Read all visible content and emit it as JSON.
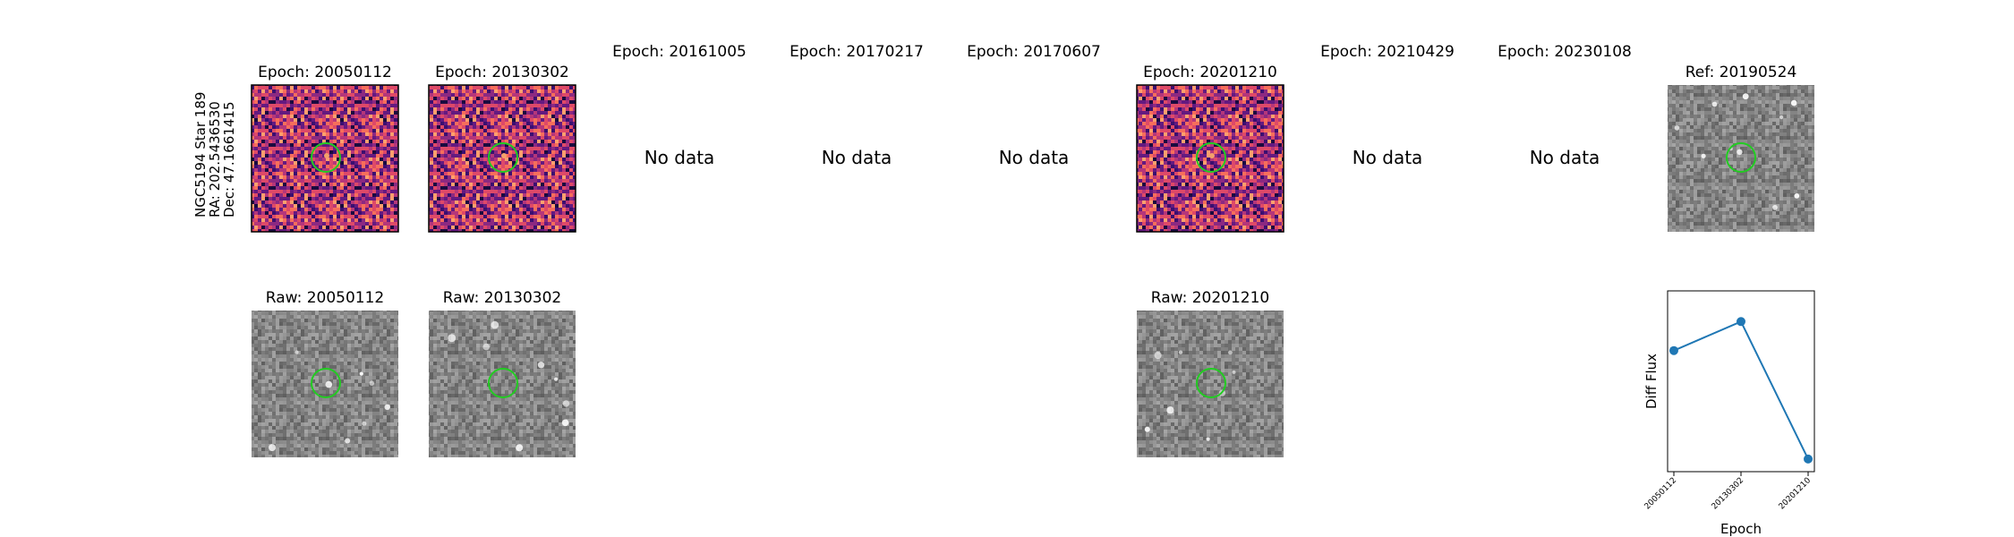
{
  "target_info": [
    "NGC5194 Star 189",
    "RA: 202.5436530",
    "Dec: 47.1661415"
  ],
  "no_data_label": "No data",
  "panels": [
    {
      "title": "Epoch: 20050112",
      "has_data": true,
      "raw_title": "Raw: 20050112"
    },
    {
      "title": "Epoch: 20130302",
      "has_data": true,
      "raw_title": "Raw: 20130302"
    },
    {
      "title": "Epoch: 20161005",
      "has_data": false,
      "raw_title": ""
    },
    {
      "title": "Epoch: 20170217",
      "has_data": false,
      "raw_title": ""
    },
    {
      "title": "Epoch: 20170607",
      "has_data": false,
      "raw_title": ""
    },
    {
      "title": "Epoch: 20201210",
      "has_data": true,
      "raw_title": "Raw: 20201210"
    },
    {
      "title": "Epoch: 20210429",
      "has_data": false,
      "raw_title": ""
    },
    {
      "title": "Epoch: 20230108",
      "has_data": false,
      "raw_title": ""
    }
  ],
  "reference": {
    "title": "Ref: 20190524"
  },
  "colors": {
    "marker_circle": "#22cc22",
    "series": "#1f77b4"
  },
  "chart_data": {
    "type": "line",
    "x": [
      "20050112",
      "20130302",
      "20201210"
    ],
    "y": [
      0.62,
      0.78,
      0.02
    ],
    "xlabel": "Epoch",
    "ylabel": "Diff Flux",
    "ylim": [
      -0.05,
      0.95
    ],
    "y_ticks_shown": false,
    "marker": "circle"
  }
}
